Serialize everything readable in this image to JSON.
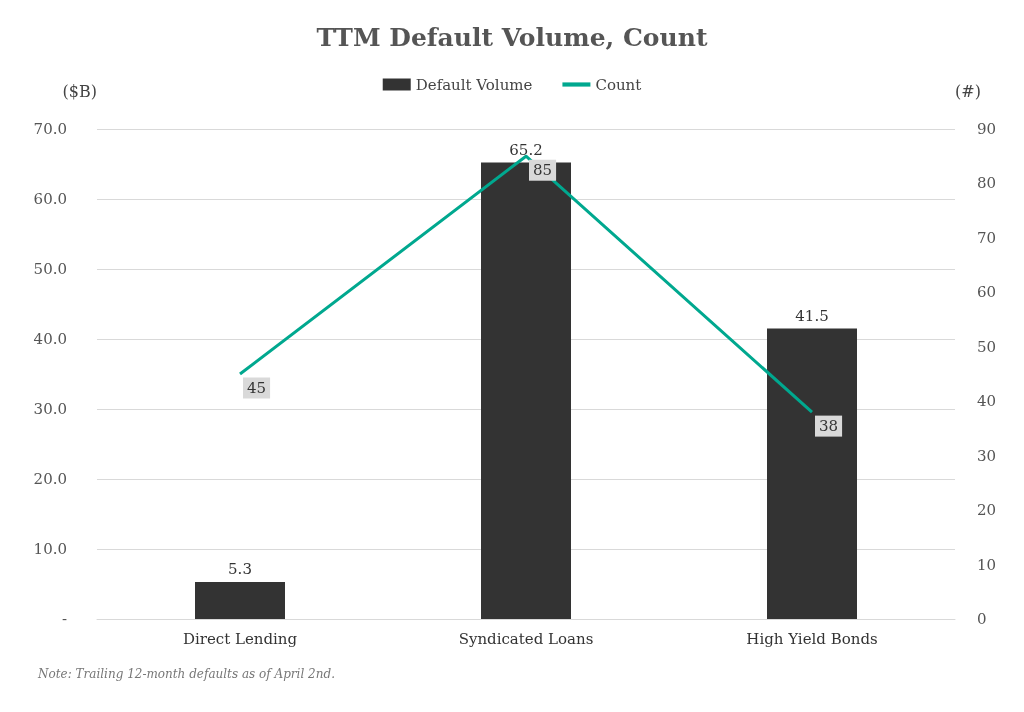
{
  "chart_data": {
    "type": "bar",
    "title": "TTM Default Volume, Count",
    "ylabel": "($B)",
    "y2label": "(#)",
    "categories": [
      "Direct Lending",
      "Syndicated Loans",
      "High Yield Bonds"
    ],
    "series": [
      {
        "name": "Default Volume",
        "color": "#333333",
        "values": [
          5.3,
          65.2,
          41.5
        ]
      },
      {
        "name": "Count",
        "type": "line",
        "axis": "y2",
        "color": "#00a88f",
        "values": [
          45,
          85,
          38
        ]
      }
    ],
    "ylim": [
      0,
      70
    ],
    "yticks": [
      {
        "value": 0,
        "label": "-"
      },
      {
        "value": 10,
        "label": "10.0"
      },
      {
        "value": 20,
        "label": "20.0"
      },
      {
        "value": 30,
        "label": "30.0"
      },
      {
        "value": 40,
        "label": "40.0"
      },
      {
        "value": 50,
        "label": "50.0"
      },
      {
        "value": 60,
        "label": "60.0"
      },
      {
        "value": 70,
        "label": "70.0"
      }
    ],
    "y2lim": [
      0,
      90
    ],
    "y2ticks": [
      0,
      10,
      20,
      30,
      40,
      50,
      60,
      70,
      80,
      90
    ],
    "grid": "y",
    "legend": "top",
    "data_labels": true,
    "marker": "none",
    "annotations": [
      "Note: Trailing 12-month defaults as of April 2nd."
    ]
  }
}
